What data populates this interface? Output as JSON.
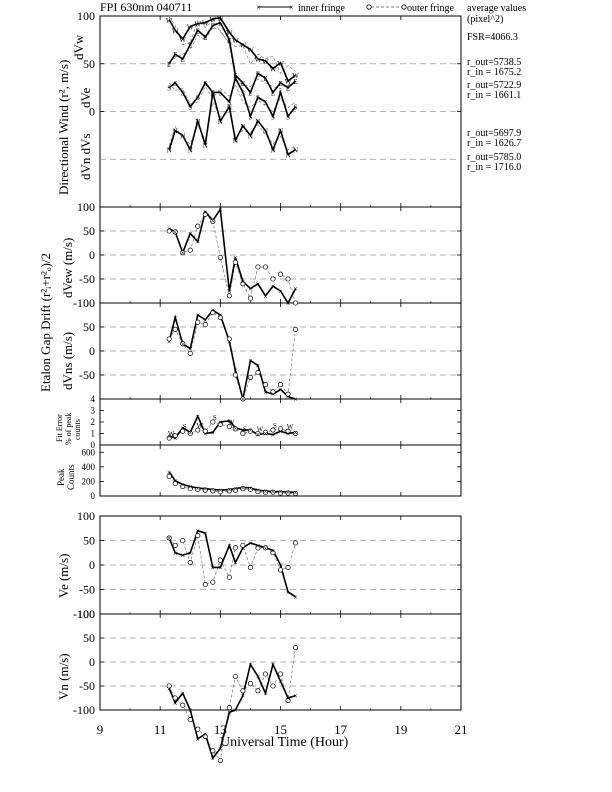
{
  "header": {
    "title": "FPI 630nm 040711",
    "legend_inner": "inner fringe",
    "legend_outer": "outer fringe",
    "avg_title_1": "average values",
    "avg_title_2": "(pixel^2)"
  },
  "averages": {
    "fsr": "FSR=4066.3",
    "w_out": "r_out=5738.5",
    "w_in": "r_in = 1675.2",
    "e_out": "r_out=5722.9",
    "e_in": "r_in = 1661.1",
    "s_out": "r_out=5697.9",
    "s_in": "r_in = 1626.7",
    "n_out": "r_out=5785.0",
    "n_in": "r_in = 1716.0"
  },
  "labels": {
    "dir_wind": "Directional Wind (r², m/s)",
    "dvw": "dVw",
    "dve": "dVe",
    "dvn_dvs": "dVn  dVs",
    "etalon": "Etalon Gap Drift (r²ᵢ+r²ₒ)/2",
    "dvew": "dVew (m/s)",
    "dvns": "dVns (m/s)",
    "fit1": "Fit Error",
    "fit2": "% of peak",
    "fit3": "counts",
    "peak1": "Peak",
    "peak2": "Counts",
    "ve": "Ve (m/s)",
    "vn": "Vn (m/s)",
    "xlabel": "Universal Time (Hour)"
  },
  "chart_data": {
    "type": "line",
    "x_range": [
      9,
      21
    ],
    "x_ticks": [
      "9",
      "11",
      "13",
      "15",
      "17",
      "19",
      "21"
    ],
    "series_names": [
      "inner fringe",
      "outer fringe"
    ],
    "panels": [
      {
        "id": "directional",
        "ylabel": "Directional Wind (r², m/s)",
        "ylim": [
          -100,
          100
        ],
        "yticks": [
          "0",
          "50",
          "100"
        ],
        "dashed_levels": [
          -100,
          -50,
          0,
          50,
          100
        ],
        "letter_series": [
          {
            "letter": "W",
            "x": [
              11.3,
              11.5,
              11.75,
              12.0,
              12.25,
              12.5,
              12.75,
              13.0,
              13.3,
              13.5,
              13.75,
              14.0,
              14.25,
              14.5,
              14.75,
              15.0,
              15.25,
              15.5
            ],
            "y_inner": [
              96,
              85,
              76,
              89,
              92,
              93,
              97,
              98,
              83,
              75,
              70,
              65,
              55,
              53,
              45,
              51,
              32,
              38
            ],
            "y_outer": [
              99,
              90,
              70,
              72,
              95,
              88,
              95,
              84,
              72,
              68,
              69,
              50,
              60,
              55,
              58,
              40,
              48,
              42
            ]
          },
          {
            "letter": "E",
            "x": [
              11.3,
              11.5,
              11.75,
              12.0,
              12.25,
              12.5,
              12.75,
              13.0,
              13.3,
              13.5,
              13.75,
              14.0,
              14.25,
              14.5,
              14.75,
              15.0,
              15.25,
              15.5
            ],
            "y_inner": [
              50,
              60,
              55,
              70,
              85,
              78,
              90,
              93,
              75,
              38,
              30,
              20,
              40,
              35,
              20,
              30,
              25,
              32
            ],
            "y_outer": [
              52,
              56,
              60,
              65,
              80,
              75,
              88,
              85,
              70,
              34,
              28,
              26,
              34,
              30,
              26,
              24,
              28,
              30
            ]
          },
          {
            "letter": "S",
            "x": [
              11.3,
              11.5,
              11.75,
              12.0,
              12.25,
              12.5,
              12.75,
              13.0,
              13.3,
              13.5,
              13.75,
              14.0,
              14.25,
              14.5,
              14.75,
              15.0,
              15.25,
              15.5
            ],
            "y_inner": [
              25,
              30,
              20,
              5,
              15,
              30,
              20,
              20,
              10,
              35,
              20,
              -5,
              15,
              10,
              -5,
              20,
              -5,
              5
            ],
            "y_outer": [
              30,
              22,
              24,
              8,
              10,
              26,
              14,
              24,
              16,
              28,
              10,
              4,
              12,
              6,
              0,
              14,
              4,
              10
            ]
          },
          {
            "letter": "N",
            "x": [
              11.3,
              11.5,
              11.75,
              12.0,
              12.25,
              12.5,
              12.75,
              13.0,
              13.3,
              13.5,
              13.75,
              14.0,
              14.25,
              14.5,
              14.75,
              15.0,
              15.25,
              15.5
            ],
            "y_inner": [
              -40,
              -20,
              -25,
              -40,
              -10,
              -35,
              20,
              -10,
              5,
              -30,
              -15,
              -25,
              -10,
              -20,
              -40,
              -20,
              -45,
              -40
            ],
            "y_outer": [
              -36,
              -16,
              -28,
              -34,
              -14,
              -30,
              10,
              -6,
              0,
              -26,
              -20,
              -22,
              -14,
              -24,
              -34,
              -26,
              -40,
              -36
            ]
          }
        ]
      },
      {
        "id": "dvew",
        "ylabel": "dVew (m/s)",
        "ylim": [
          -100,
          100
        ],
        "yticks": [
          "-100",
          "-50",
          "0",
          "50",
          "100"
        ],
        "dashed_levels": [
          -50,
          0,
          50
        ],
        "x": [
          11.3,
          11.5,
          11.75,
          12.0,
          12.25,
          12.5,
          12.75,
          13.0,
          13.3,
          13.5,
          13.75,
          14.0,
          14.25,
          14.5,
          14.75,
          15.0,
          15.25,
          15.5
        ],
        "inner": [
          55,
          48,
          5,
          45,
          28,
          90,
          72,
          95,
          -75,
          -5,
          -55,
          -70,
          -60,
          -85,
          -65,
          -75,
          -100,
          -70
        ],
        "outer": [
          50,
          48,
          5,
          10,
          60,
          85,
          70,
          -5,
          -85,
          -15,
          -60,
          -90,
          -25,
          -25,
          -50,
          -40,
          -50,
          -100
        ]
      },
      {
        "id": "dvns",
        "ylabel": "dVns (m/s)",
        "ylim": [
          -100,
          100
        ],
        "yticks": [
          "-50",
          "0",
          "50"
        ],
        "dashed_levels": [
          -50,
          0,
          50
        ],
        "x": [
          11.3,
          11.5,
          11.75,
          12.0,
          12.25,
          12.5,
          12.75,
          13.0,
          13.3,
          13.5,
          13.75,
          14.0,
          14.25,
          14.5,
          14.75,
          15.0,
          15.25,
          15.5
        ],
        "inner": [
          20,
          70,
          15,
          5,
          75,
          65,
          85,
          75,
          20,
          -40,
          -100,
          -20,
          -30,
          -85,
          -90,
          -80,
          -95,
          -100
        ],
        "outer": [
          25,
          45,
          15,
          -5,
          60,
          55,
          80,
          70,
          25,
          -50,
          -100,
          -55,
          -45,
          -70,
          -85,
          -70,
          -90,
          45
        ]
      },
      {
        "id": "fit",
        "ylabel": "Fit Error % of peak counts",
        "ylim": [
          0,
          4
        ],
        "yticks": [
          "0",
          "1",
          "2",
          "3",
          "4"
        ],
        "letters": [
          "W",
          "E",
          "S",
          "N"
        ],
        "x": [
          11.3,
          11.5,
          11.75,
          12.0,
          12.25,
          12.5,
          12.75,
          13.0,
          13.3,
          13.5,
          13.75,
          14.0,
          14.25,
          14.5,
          14.75,
          15.0,
          15.25,
          15.5
        ],
        "inner": [
          0.8,
          0.6,
          1.5,
          1.1,
          2.5,
          1.0,
          1.1,
          2.0,
          2.1,
          1.5,
          1.3,
          1.3,
          0.9,
          1.0,
          0.9,
          1.2,
          1.0,
          1.1
        ],
        "outer": [
          0.6,
          0.8,
          1.2,
          1.0,
          1.3,
          1.2,
          2.0,
          1.8,
          1.6,
          1.4,
          1.0,
          1.2,
          1.0,
          1.1,
          1.3,
          1.4,
          1.2,
          1.0
        ]
      },
      {
        "id": "peak",
        "ylabel": "Peak Counts",
        "ylim": [
          0,
          700
        ],
        "yticks": [
          "0",
          "200",
          "400",
          "600"
        ],
        "x": [
          11.3,
          11.5,
          11.75,
          12.0,
          12.25,
          12.5,
          12.75,
          13.0,
          13.3,
          13.5,
          13.75,
          14.0,
          14.25,
          14.5,
          14.75,
          15.0,
          15.25,
          15.5
        ],
        "inner": [
          330,
          210,
          160,
          130,
          110,
          100,
          90,
          80,
          90,
          100,
          120,
          110,
          80,
          70,
          60,
          60,
          55,
          50
        ],
        "outer": [
          270,
          170,
          130,
          100,
          90,
          80,
          70,
          60,
          70,
          80,
          100,
          90,
          60,
          50,
          50,
          40,
          40,
          35
        ]
      },
      {
        "id": "ve",
        "ylabel": "Ve (m/s)",
        "ylim": [
          -100,
          100
        ],
        "yticks": [
          "-100",
          "-50",
          "0",
          "50",
          "100"
        ],
        "dashed_levels": [
          -50,
          0,
          50
        ],
        "x": [
          11.3,
          11.5,
          11.75,
          12.0,
          12.25,
          12.5,
          12.75,
          13.0,
          13.3,
          13.5,
          13.75,
          14.0,
          14.25,
          14.5,
          14.75,
          15.0,
          15.25,
          15.5
        ],
        "inner": [
          55,
          25,
          20,
          25,
          70,
          65,
          -5,
          -5,
          40,
          5,
          35,
          45,
          40,
          35,
          30,
          0,
          -55,
          -65
        ],
        "outer": [
          55,
          40,
          50,
          5,
          60,
          -40,
          -35,
          10,
          -25,
          35,
          40,
          -5,
          35,
          35,
          25,
          -10,
          -5,
          45
        ]
      },
      {
        "id": "vn",
        "ylabel": "Vn (m/s)",
        "ylim": [
          -100,
          100
        ],
        "yticks": [
          "-100",
          "-50",
          "0",
          "50",
          "100"
        ],
        "dashed_levels": [
          -50,
          0,
          50
        ],
        "x": [
          11.3,
          11.5,
          11.75,
          12.0,
          12.25,
          12.5,
          12.75,
          13.0,
          13.3,
          13.5,
          13.75,
          14.0,
          14.25,
          14.5,
          14.75,
          15.0,
          15.25,
          15.5
        ],
        "inner": [
          -55,
          -85,
          -65,
          -100,
          -160,
          -150,
          -200,
          -180,
          -105,
          -100,
          -70,
          -5,
          -30,
          -65,
          -5,
          -40,
          -75,
          -70
        ],
        "outer": [
          -50,
          -75,
          -90,
          -120,
          -140,
          -155,
          -185,
          -205,
          -95,
          -30,
          -60,
          -45,
          -60,
          -25,
          -50,
          -25,
          -80,
          30
        ]
      }
    ]
  }
}
